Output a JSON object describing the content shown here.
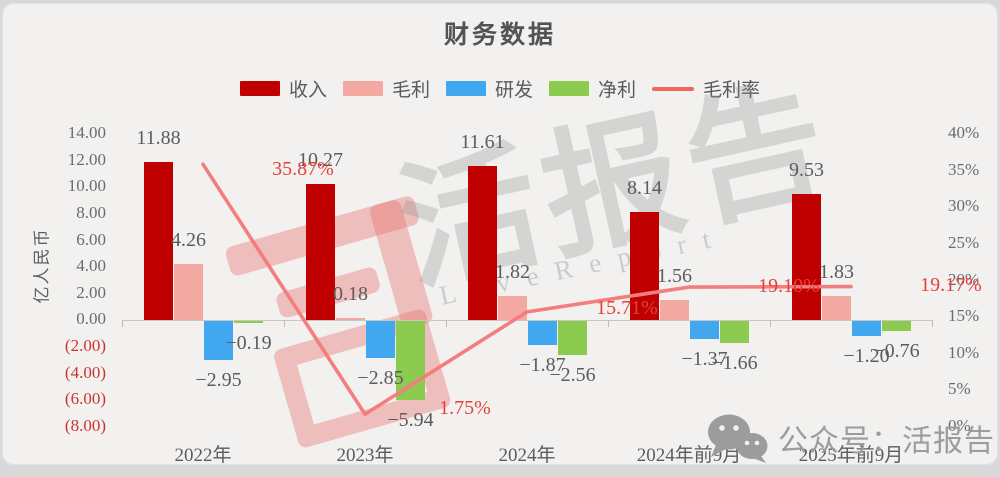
{
  "title": "财务数据",
  "legend": [
    {
      "label": "收入",
      "color": "#c00000",
      "type": "bar"
    },
    {
      "label": "毛利",
      "color": "#f4a8a2",
      "type": "bar"
    },
    {
      "label": "研发",
      "color": "#41a7ee",
      "type": "bar"
    },
    {
      "label": "净利",
      "color": "#8ccb50",
      "type": "bar"
    },
    {
      "label": "毛利率",
      "color": "#f2665f",
      "type": "line"
    }
  ],
  "y_left": {
    "title": "亿人民币",
    "ticks": [
      "14.00",
      "12.00",
      "10.00",
      "8.00",
      "6.00",
      "4.00",
      "2.00",
      "0.00",
      "(2.00)",
      "(4.00)",
      "(6.00)",
      "(8.00)"
    ],
    "values": [
      14,
      12,
      10,
      8,
      6,
      4,
      2,
      0,
      -2,
      -4,
      -6,
      -8
    ],
    "negative_color": "#c9352e"
  },
  "y_right": {
    "ticks": [
      "40%",
      "35%",
      "30%",
      "25%",
      "20%",
      "15%",
      "10%",
      "5%",
      "0%"
    ],
    "values": [
      40,
      35,
      30,
      25,
      20,
      15,
      10,
      5,
      0
    ]
  },
  "chart_data": {
    "type": "bar",
    "title": "财务数据",
    "categories": [
      "2022年",
      "2023年",
      "2024年",
      "2024年前9月",
      "2025年前9月"
    ],
    "left_axis_label": "亿人民币",
    "left_range": [
      -8,
      14
    ],
    "right_range": [
      0,
      40
    ],
    "grid": false,
    "legend_position": "top",
    "series": [
      {
        "name": "收入",
        "type": "bar",
        "axis": "left",
        "color": "#c00000",
        "values": [
          11.88,
          10.27,
          11.61,
          8.14,
          9.53
        ],
        "labels": [
          "11.88",
          "10.27",
          "11.61",
          "8.14",
          "9.53"
        ]
      },
      {
        "name": "毛利",
        "type": "bar",
        "axis": "left",
        "color": "#f4a8a2",
        "values": [
          4.26,
          0.18,
          1.82,
          1.56,
          1.83
        ],
        "labels": [
          "4.26",
          "0.18",
          "1.82",
          "1.56",
          "1.83"
        ]
      },
      {
        "name": "研发",
        "type": "bar",
        "axis": "left",
        "color": "#41a7ee",
        "values": [
          -2.95,
          -2.85,
          -1.87,
          -1.37,
          -1.2
        ],
        "labels": [
          "−2.95",
          "−2.85",
          "−1.87",
          "−1.37",
          "−1.20"
        ]
      },
      {
        "name": "净利",
        "type": "bar",
        "axis": "left",
        "color": "#8ccb50",
        "values": [
          -0.19,
          -5.94,
          -2.56,
          -1.66,
          -0.76
        ],
        "labels": [
          "−0.19",
          "−5.94",
          "−2.56",
          "−1.66",
          "−0.76"
        ]
      },
      {
        "name": "毛利率",
        "type": "line",
        "axis": "right",
        "color": "#f47d7d",
        "values": [
          35.87,
          1.75,
          15.71,
          19.1,
          19.17
        ],
        "labels": [
          "35.87%",
          "1.75%",
          "15.71%",
          "19.10%",
          "19.17%"
        ],
        "label_color": "#e5403a"
      }
    ]
  },
  "watermark": {
    "center_text": "活报告",
    "center_sub": "LiveReport"
  },
  "footer": {
    "wechat_label": "公众号：活报告"
  }
}
